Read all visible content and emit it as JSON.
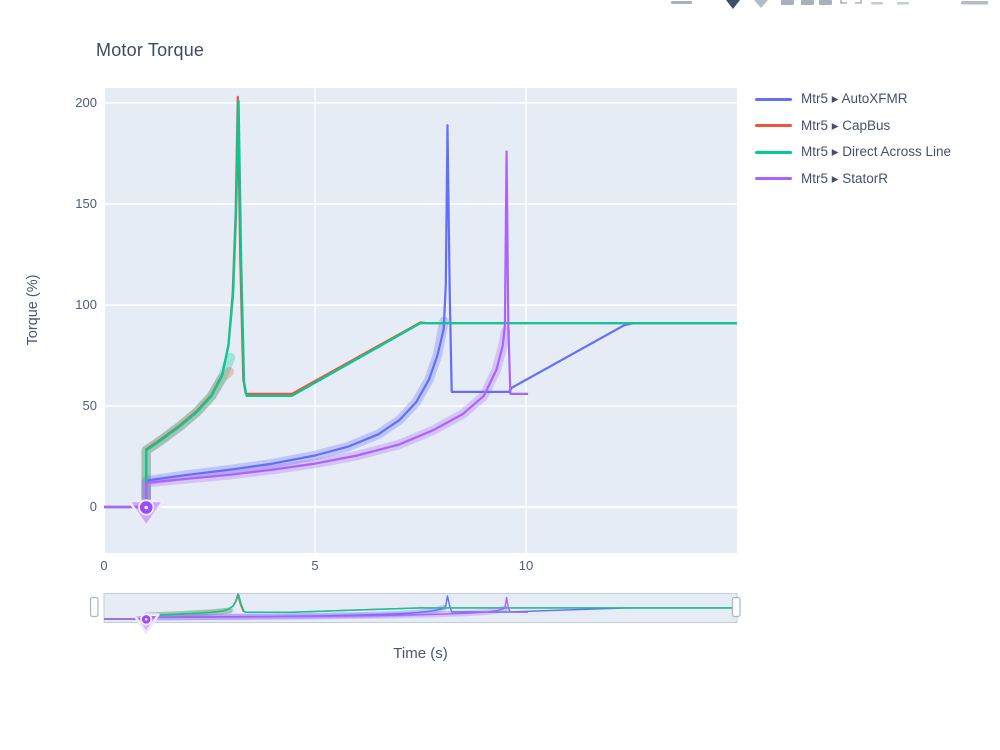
{
  "title": "Motor Torque",
  "axes": {
    "x_title": "Time (s)",
    "y_title": "Torque (%)"
  },
  "chart_data": {
    "type": "line",
    "title": "Motor Torque",
    "xlabel": "Time (s)",
    "ylabel": "Torque (%)",
    "xlim": [
      0,
      15
    ],
    "ylim": [
      -22.8,
      207.4
    ],
    "xticks": [
      0,
      5,
      10
    ],
    "yticks": [
      0,
      50,
      100,
      150,
      200
    ],
    "grid": "white-on-lightblue",
    "plot_bg": "#E5ECF6",
    "grid_color": "#FFFFFF",
    "legend_position": "right",
    "rangeslider": true,
    "series": [
      {
        "name": "Mtr5 ▸ AutoXFMR",
        "color": "#636EFA",
        "points": [
          [
            0,
            0
          ],
          [
            1,
            0
          ],
          [
            1,
            13
          ],
          [
            1.5,
            14.5
          ],
          [
            2,
            16
          ],
          [
            3,
            18.5
          ],
          [
            4,
            21.5
          ],
          [
            5,
            25.5
          ],
          [
            5.8,
            30
          ],
          [
            6.5,
            36
          ],
          [
            7,
            43
          ],
          [
            7.4,
            52
          ],
          [
            7.7,
            63
          ],
          [
            7.9,
            75
          ],
          [
            8.05,
            88
          ],
          [
            8.1,
            110
          ],
          [
            8.14,
            189
          ],
          [
            8.19,
            110
          ],
          [
            8.24,
            57
          ],
          [
            9.6,
            57
          ],
          [
            9.66,
            59
          ],
          [
            12.33,
            90
          ],
          [
            12.55,
            91
          ],
          [
            15,
            91
          ]
        ]
      },
      {
        "name": "Mtr5 ▸ CapBus",
        "color": "#EF553B",
        "points": [
          [
            0,
            0
          ],
          [
            1,
            0
          ],
          [
            1,
            28.5
          ],
          [
            1.35,
            33.5
          ],
          [
            1.8,
            40.5
          ],
          [
            2.2,
            47.5
          ],
          [
            2.55,
            55.5
          ],
          [
            2.8,
            65.5
          ],
          [
            2.95,
            80.5
          ],
          [
            3.05,
            106
          ],
          [
            3.12,
            146
          ],
          [
            3.17,
            203
          ],
          [
            3.23,
            122
          ],
          [
            3.3,
            63
          ],
          [
            3.36,
            56
          ],
          [
            4.45,
            56
          ],
          [
            7.5,
            91.4
          ],
          [
            7.65,
            91
          ],
          [
            15,
            91
          ]
        ]
      },
      {
        "name": "Mtr5 ▸ Direct Across Line",
        "color": "#00CC96",
        "points": [
          [
            0,
            0
          ],
          [
            1,
            0
          ],
          [
            1,
            28
          ],
          [
            1.35,
            33
          ],
          [
            1.8,
            40
          ],
          [
            2.2,
            47
          ],
          [
            2.55,
            55
          ],
          [
            2.8,
            65
          ],
          [
            2.95,
            80
          ],
          [
            3.06,
            105
          ],
          [
            3.13,
            145
          ],
          [
            3.19,
            201
          ],
          [
            3.25,
            122
          ],
          [
            3.32,
            62
          ],
          [
            3.38,
            55
          ],
          [
            4.45,
            55
          ],
          [
            7.5,
            91
          ],
          [
            15,
            91
          ]
        ]
      },
      {
        "name": "Mtr5 ▸ StatorR",
        "color": "#AB63FA",
        "points": [
          [
            0,
            0
          ],
          [
            1,
            0
          ],
          [
            1,
            12
          ],
          [
            1.5,
            13
          ],
          [
            2,
            14
          ],
          [
            3,
            16
          ],
          [
            4,
            18.5
          ],
          [
            5,
            21.5
          ],
          [
            6,
            25.5
          ],
          [
            7,
            31
          ],
          [
            7.8,
            38
          ],
          [
            8.5,
            46
          ],
          [
            9,
            55
          ],
          [
            9.3,
            68
          ],
          [
            9.45,
            80
          ],
          [
            9.5,
            90
          ],
          [
            9.54,
            176
          ],
          [
            9.58,
            90
          ],
          [
            9.63,
            56
          ],
          [
            10.05,
            56
          ]
        ]
      }
    ],
    "bands": [
      {
        "series": "Mtr5 ▸ AutoXFMR",
        "color": "#636EFA",
        "opacity": 0.3,
        "points": [
          [
            1,
            2
          ],
          [
            1,
            13
          ],
          [
            1.5,
            14.5
          ],
          [
            2,
            16
          ],
          [
            3,
            18.5
          ],
          [
            4,
            21.5
          ],
          [
            5,
            25.5
          ],
          [
            5.8,
            30
          ],
          [
            6.5,
            36
          ],
          [
            7,
            43
          ],
          [
            7.4,
            52
          ],
          [
            7.7,
            63
          ],
          [
            7.9,
            75
          ],
          [
            8.06,
            92
          ]
        ]
      },
      {
        "series": "Mtr5 ▸ CapBus",
        "color": "#EF553B",
        "opacity": 0.3,
        "points": [
          [
            1,
            2
          ],
          [
            1,
            28
          ],
          [
            1.35,
            33
          ],
          [
            1.8,
            40
          ],
          [
            2.2,
            47
          ],
          [
            2.55,
            55
          ],
          [
            2.8,
            64
          ],
          [
            2.97,
            67
          ]
        ]
      },
      {
        "series": "Mtr5 ▸ Direct Across Line",
        "color": "#00CC96",
        "opacity": 0.3,
        "points": [
          [
            1,
            2
          ],
          [
            1,
            28
          ],
          [
            1.35,
            33
          ],
          [
            1.8,
            40
          ],
          [
            2.2,
            47
          ],
          [
            2.55,
            55
          ],
          [
            2.8,
            64
          ],
          [
            3.0,
            74
          ]
        ]
      },
      {
        "series": "Mtr5 ▸ StatorR",
        "color": "#AB63FA",
        "opacity": 0.3,
        "points": [
          [
            1,
            2
          ],
          [
            1,
            12
          ],
          [
            1.5,
            13
          ],
          [
            2,
            14
          ],
          [
            3,
            16
          ],
          [
            4,
            18.5
          ],
          [
            5,
            21.5
          ],
          [
            6,
            25.5
          ],
          [
            7,
            31
          ],
          [
            7.8,
            38
          ],
          [
            8.5,
            46
          ],
          [
            9,
            55
          ],
          [
            9.3,
            68
          ],
          [
            9.45,
            80
          ],
          [
            9.52,
            87
          ]
        ]
      }
    ],
    "marker": {
      "x": 1,
      "y": 0,
      "shape": "triangle-down-circle-dot",
      "color": "#AB63FA"
    }
  },
  "colors": {
    "plot_bg": "#E5ECF6",
    "grid": "#FFFFFF",
    "text": "#44506B",
    "slider_border": "#C3CEDC"
  }
}
